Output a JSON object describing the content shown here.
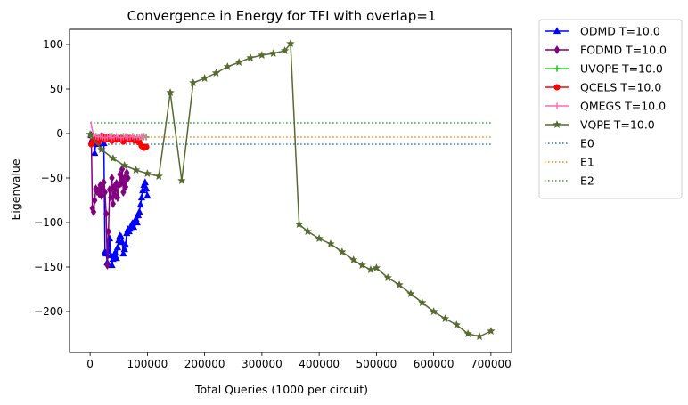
{
  "chart_data": {
    "type": "line",
    "title": "Convergence in Energy for TFI with overlap=1",
    "xlabel": "Total Queries (1000 per circuit)",
    "ylabel": "Eigenvalue",
    "xlim": [
      -36000,
      736000
    ],
    "ylim": [
      -246,
      117
    ],
    "x_ticks": [
      0,
      100000,
      200000,
      300000,
      400000,
      500000,
      600000,
      700000
    ],
    "x_tick_labels": [
      "0",
      "100000",
      "200000",
      "300000",
      "400000",
      "500000",
      "600000",
      "700000"
    ],
    "y_ticks": [
      100,
      50,
      0,
      -50,
      -100,
      -150,
      -200
    ],
    "y_tick_labels": [
      "100",
      "50",
      "0",
      "−50",
      "−100",
      "−150",
      "−200"
    ],
    "grid": false,
    "legend_placement": "outside-top-right",
    "series": [
      {
        "name": "ODMD T=10.0",
        "color": "#0000ff",
        "marker": "triangle",
        "x": [
          2000,
          4000,
          6000,
          8000,
          10000,
          12000,
          14000,
          16000,
          18000,
          20000,
          22000,
          24000,
          26000,
          28000,
          30000,
          32000,
          34000,
          36000,
          38000,
          40000,
          42000,
          44000,
          46000,
          48000,
          50000,
          52000,
          54000,
          56000,
          58000,
          60000,
          62000,
          64000,
          66000,
          68000,
          70000,
          72000,
          74000,
          76000,
          78000,
          80000,
          82000,
          84000,
          86000,
          88000,
          90000,
          92000,
          94000,
          96000,
          98000,
          100000
        ],
        "y": [
          -2,
          -6,
          -5,
          -22,
          -10,
          -8,
          -12,
          -7,
          -4,
          -3,
          -5,
          -11,
          -133,
          -135,
          -145,
          -132,
          -118,
          -137,
          -148,
          -141,
          -136,
          -134,
          -140,
          -128,
          -120,
          -115,
          -116,
          -122,
          -135,
          -130,
          -125,
          -112,
          -108,
          -110,
          -107,
          -103,
          -101,
          -105,
          -99,
          -96,
          -100,
          -92,
          -88,
          -80,
          -72,
          -64,
          -58,
          -55,
          -62,
          -70
        ]
      },
      {
        "name": "FODMD T=10.0",
        "color": "#800080",
        "marker": "diamond",
        "x": [
          2000,
          4000,
          6000,
          8000,
          10000,
          12000,
          14000,
          16000,
          18000,
          20000,
          22000,
          24000,
          26000,
          28000,
          30000,
          32000,
          34000,
          36000,
          38000,
          40000,
          42000,
          44000,
          46000,
          48000,
          50000,
          52000,
          54000,
          56000,
          58000,
          60000,
          62000,
          64000,
          66000
        ],
        "y": [
          -3,
          -84,
          -88,
          -75,
          -62,
          -65,
          -64,
          -68,
          -58,
          -70,
          -60,
          -55,
          -66,
          -90,
          -148,
          -110,
          -63,
          -72,
          -50,
          -79,
          -60,
          -70,
          -56,
          -72,
          -58,
          -46,
          -56,
          -40,
          -66,
          -50,
          -60,
          -44,
          -50
        ]
      },
      {
        "name": "UVQPE T=10.0",
        "color": "#32cd32",
        "marker": "plus",
        "x": [
          2000,
          6000,
          10000,
          14000,
          18000,
          22000,
          26000,
          30000,
          34000,
          38000,
          42000,
          46000,
          50000,
          54000,
          58000,
          62000,
          66000,
          70000,
          74000,
          78000,
          82000,
          86000,
          90000,
          94000,
          98000
        ],
        "y": [
          -3,
          -4,
          -3,
          -5,
          -4,
          -3,
          -4,
          -5,
          -4,
          -3,
          -4,
          -5,
          -4,
          -4,
          -3,
          -4,
          -5,
          -4,
          -3,
          -4,
          -4,
          -5,
          -4,
          -3,
          -4
        ]
      },
      {
        "name": "QCELS T=10.0",
        "color": "#ff0000",
        "marker": "circle",
        "x": [
          2000,
          6000,
          10000,
          14000,
          18000,
          22000,
          26000,
          30000,
          34000,
          38000,
          42000,
          46000,
          50000,
          54000,
          58000,
          62000,
          66000,
          70000,
          74000,
          78000,
          82000,
          86000,
          90000,
          94000,
          98000
        ],
        "y": [
          -12,
          -8,
          -5,
          -10,
          -6,
          -3,
          -7,
          -4,
          -6,
          -8,
          -5,
          -7,
          -6,
          -5,
          -9,
          -6,
          -5,
          -7,
          -6,
          -8,
          -7,
          -10,
          -14,
          -16,
          -15
        ]
      },
      {
        "name": "QMEGS T=10.0",
        "color": "#ff69b4",
        "marker": "vline",
        "x": [
          2000,
          6000,
          10000,
          14000,
          18000,
          22000,
          26000,
          30000,
          34000,
          38000,
          42000,
          46000,
          50000,
          54000,
          58000,
          62000,
          66000,
          70000,
          74000,
          78000,
          82000,
          86000,
          90000,
          94000,
          98000
        ],
        "y": [
          10,
          -2,
          -3,
          -4,
          -3,
          -4,
          -5,
          -4,
          -3,
          -5,
          -4,
          -3,
          -4,
          -5,
          -4,
          -3,
          -4,
          -4,
          -3,
          -5,
          -4,
          -4,
          -3,
          -4,
          -4
        ]
      },
      {
        "name": "VQPE T=10.0",
        "color": "#556b2f",
        "marker": "star",
        "x": [
          0,
          20000,
          40000,
          60000,
          80000,
          100000,
          120000,
          140000,
          160000,
          180000,
          200000,
          220000,
          240000,
          260000,
          280000,
          300000,
          320000,
          340000,
          350000,
          365000,
          380000,
          400000,
          420000,
          440000,
          460000,
          475000,
          490000,
          500000,
          520000,
          540000,
          560000,
          580000,
          600000,
          620000,
          640000,
          660000,
          680000,
          700000
        ],
        "y": [
          -1,
          -18,
          -28,
          -36,
          -41,
          -45,
          -48,
          46,
          -53,
          57,
          62,
          68,
          75,
          80,
          85,
          88,
          90,
          93,
          101,
          -102,
          -110,
          -118,
          -124,
          -133,
          -142,
          -148,
          -153,
          -151,
          -162,
          -170,
          -180,
          -190,
          -200,
          -208,
          -215,
          -225,
          -228,
          -222
        ]
      }
    ],
    "reference_lines": [
      {
        "name": "E0",
        "color": "#1f77b4",
        "y": -12,
        "from": 0,
        "to": 700000
      },
      {
        "name": "E1",
        "color": "#ff7f0e",
        "y": -4,
        "from": 0,
        "to": 700000
      },
      {
        "name": "E2",
        "color": "#2ca02c",
        "y": 12,
        "from": 0,
        "to": 700000
      }
    ]
  }
}
